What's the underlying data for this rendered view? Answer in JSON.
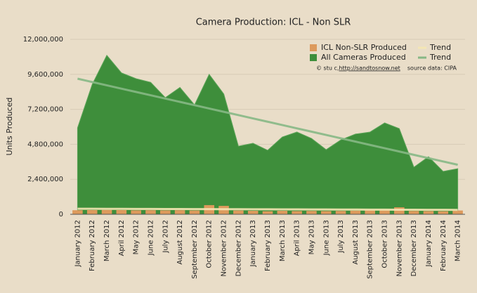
{
  "chart_data": {
    "type": "area-bar",
    "title": "Camera Production: ICL - Non SLR",
    "y_label": "Units Produced",
    "annotations": [
      "© stu c, ",
      "http://sandtosnow.net",
      "source data: CIPA"
    ],
    "categories": [
      "January 2012",
      "February 2012",
      "March 2012",
      "April 2012",
      "May 2012",
      "June 2012",
      "July 2012",
      "August 2012",
      "September 2012",
      "October 2012",
      "November 2012",
      "December 2012",
      "January 2013",
      "February 2013",
      "March 2013",
      "April 2013",
      "May 2013",
      "June 2013",
      "July 2013",
      "August 2013",
      "September 2013",
      "October 2013",
      "November 2013",
      "December 2013",
      "January 2014",
      "February 2014",
      "March 2014"
    ],
    "series": [
      {
        "name": "ICL Non-SLR Produced",
        "kind": "bar",
        "color": "#dd9a5c",
        "values": [
          280000,
          290000,
          300000,
          290000,
          270000,
          280000,
          270000,
          280000,
          260000,
          630000,
          580000,
          260000,
          240000,
          210000,
          240000,
          220000,
          230000,
          220000,
          230000,
          250000,
          280000,
          300000,
          480000,
          230000,
          220000,
          210000,
          260000
        ]
      },
      {
        "name": "Trend",
        "kind": "line",
        "color": "#f4e6b4",
        "values": [
          380000,
          377000,
          374000,
          371000,
          368000,
          365000,
          362000,
          359000,
          356000,
          353000,
          350000,
          347000,
          344000,
          341000,
          338000,
          335000,
          332000,
          329000,
          326000,
          323000,
          320000,
          317000,
          314000,
          311000,
          308000,
          305000,
          302000
        ]
      },
      {
        "name": "All Cameras Produced",
        "kind": "area",
        "color": "#3e8e3b",
        "values": [
          5930000,
          8900000,
          10900000,
          9700000,
          9300000,
          9050000,
          8000000,
          8700000,
          7500000,
          9600000,
          8250000,
          4670000,
          4870000,
          4390000,
          5300000,
          5640000,
          5200000,
          4430000,
          5100000,
          5500000,
          5640000,
          6270000,
          5880000,
          3230000,
          3950000,
          2940000,
          3130000
        ]
      },
      {
        "name": "Trend",
        "kind": "line",
        "color": "#86b885",
        "values": [
          9300000,
          9073000,
          8846000,
          8619000,
          8392000,
          8165000,
          7938000,
          7711000,
          7484000,
          7257000,
          7030000,
          6803000,
          6576000,
          6349000,
          6122000,
          5895000,
          5668000,
          5441000,
          5214000,
          4987000,
          4760000,
          4533000,
          4306000,
          4079000,
          3852000,
          3625000,
          3398000
        ]
      }
    ],
    "ylim": [
      0,
      12000000
    ],
    "yticks": [
      0,
      {
        "value": 2400000,
        "label": "2,400,000"
      },
      {
        "value": 4800000,
        "label": "4,800,000"
      },
      {
        "value": 7200000,
        "label": "7,200,000"
      },
      {
        "value": 9600000,
        "label": "9,600,000"
      },
      {
        "value": 12000000,
        "label": "12,000,000"
      }
    ],
    "grid": true
  }
}
